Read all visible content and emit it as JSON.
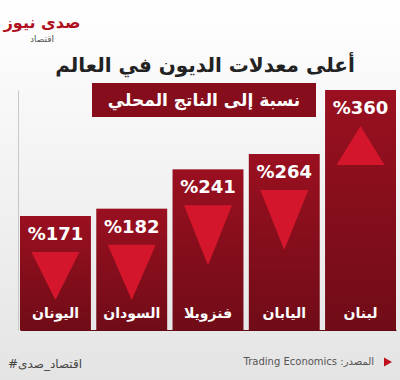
{
  "chart_data": {
    "type": "bar",
    "title": "أعلى معدلات الديون في العالم",
    "subtitle": "نسبة إلى الناتج المحلي",
    "categories": [
      "اليونان",
      "السودان",
      "فنزويلا",
      "اليابان",
      "لبنان"
    ],
    "values": [
      171,
      182,
      241,
      264,
      360
    ],
    "value_labels": [
      "%171",
      "%182",
      "%241",
      "%264",
      "%360"
    ],
    "color": "#9a1020",
    "ylim": [
      0,
      360
    ],
    "data_labels": true,
    "tick_labels": "x",
    "annotations": [
      "صدى نيوز",
      "اقتصاد",
      "المصدر: Trading Economics",
      "#اقتصاد_صدى"
    ]
  }
}
